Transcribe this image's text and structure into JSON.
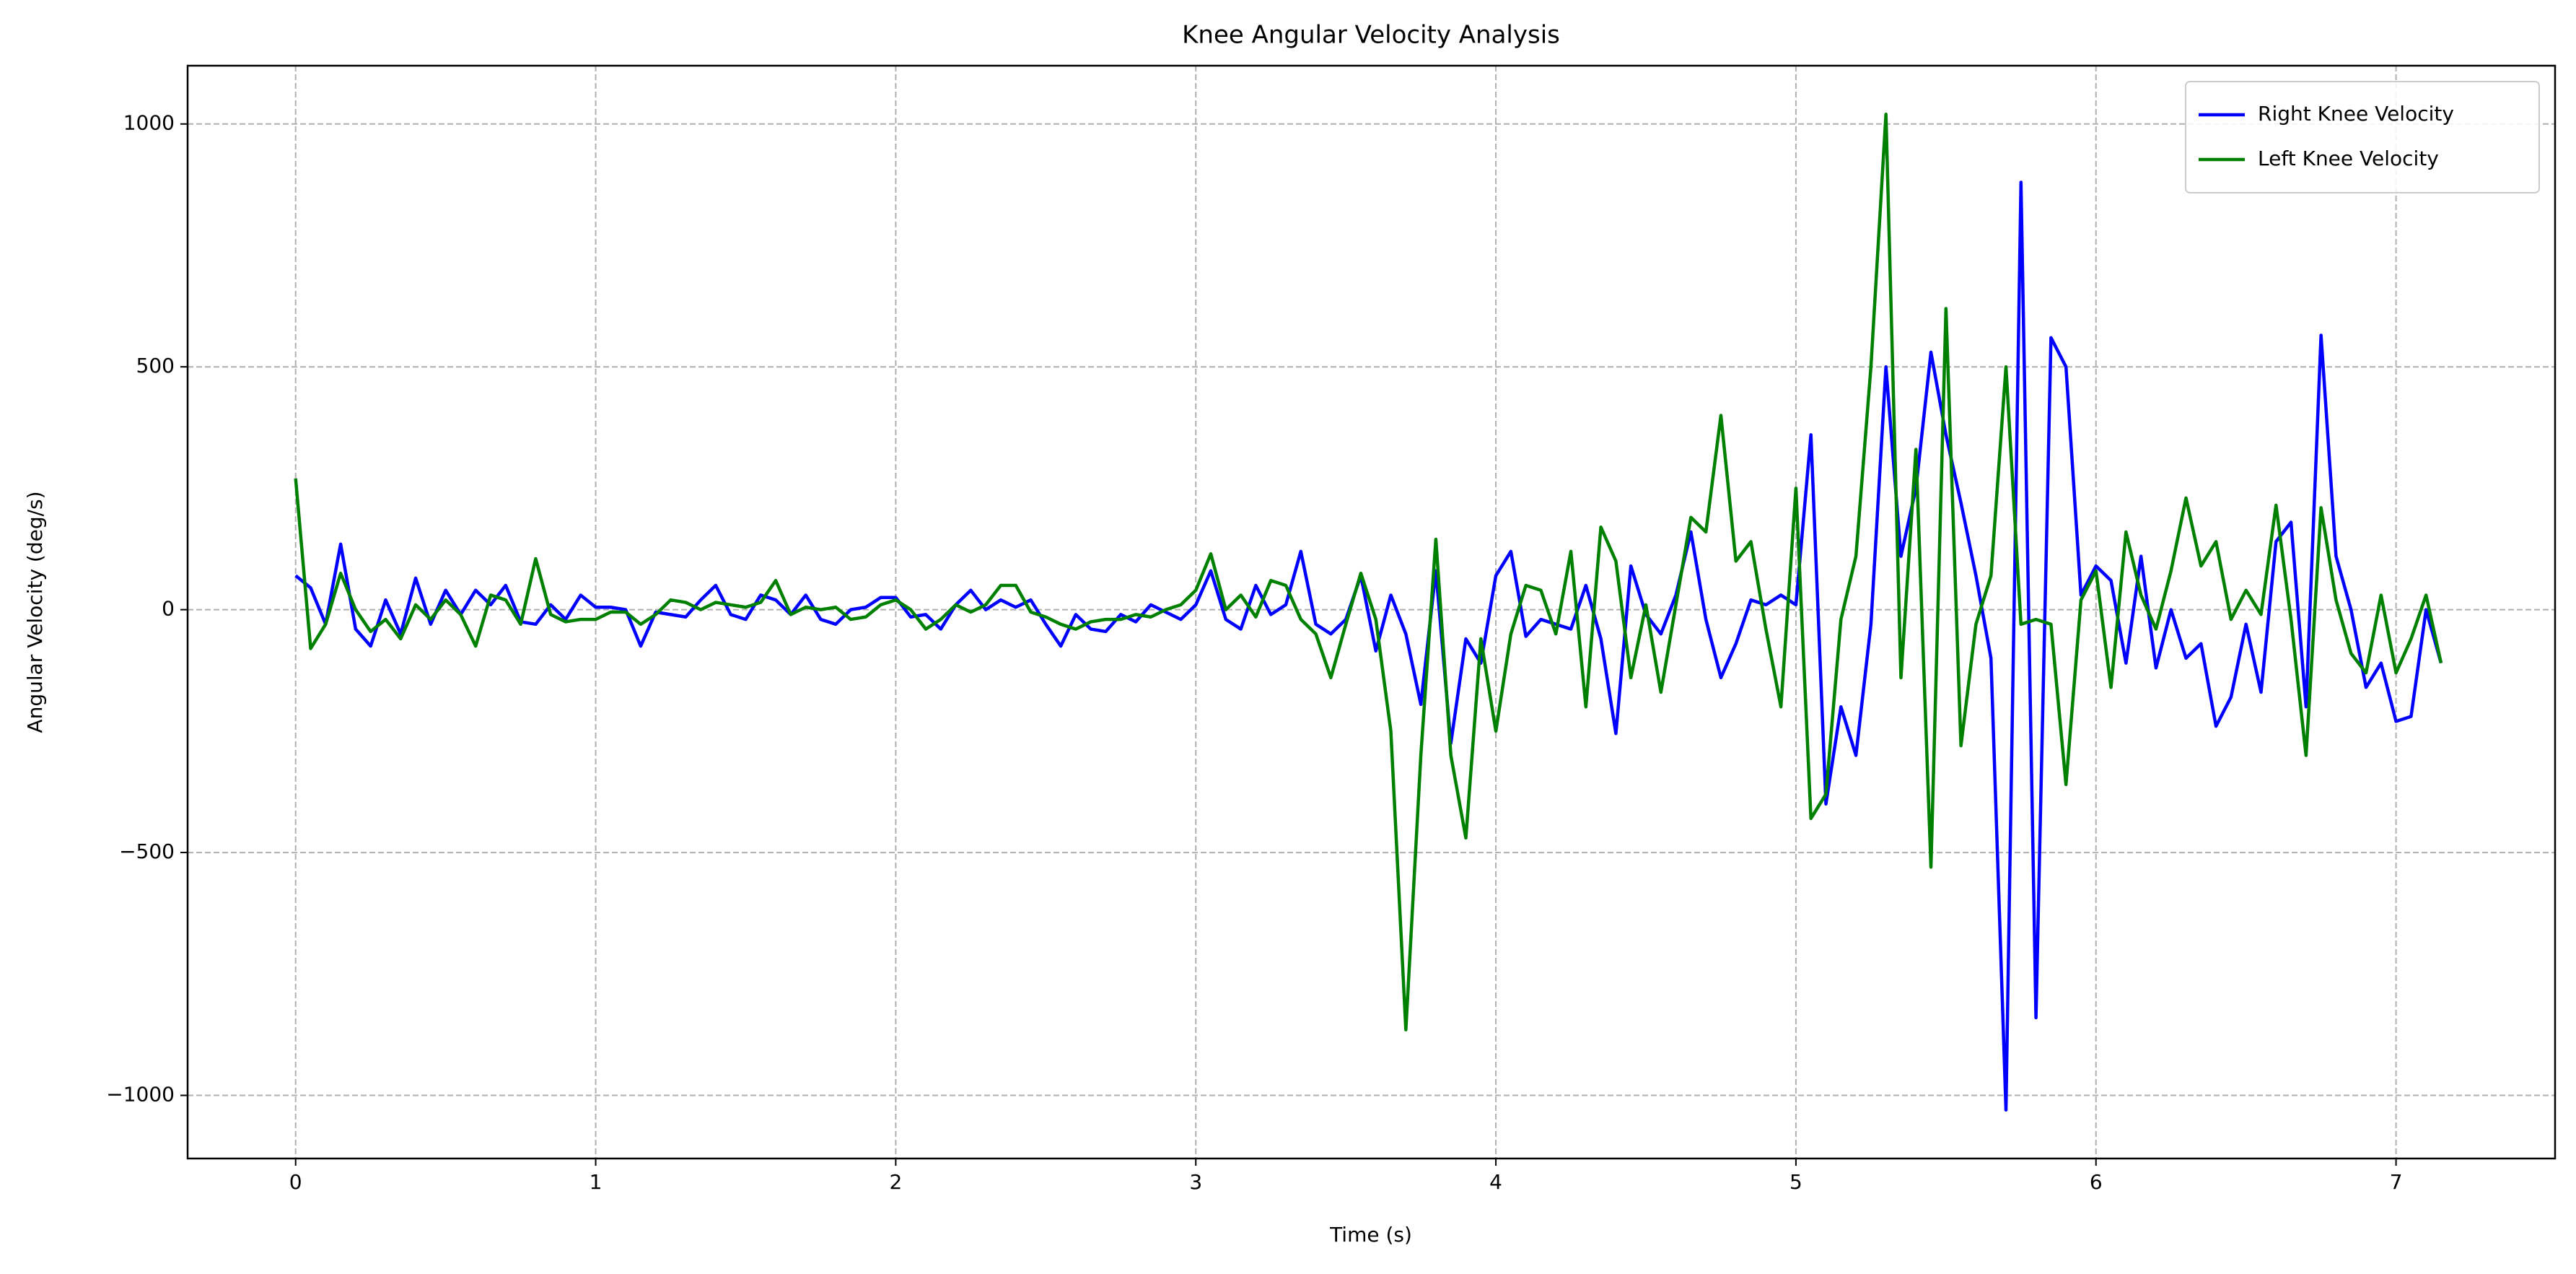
{
  "chart_data": {
    "type": "line",
    "title": "Knee Angular Velocity Analysis",
    "x_label": "Time (s)",
    "y_label": "Angular Velocity (deg/s)",
    "x": [
      0,
      0.05,
      0.1,
      0.15,
      0.2,
      0.25,
      0.3,
      0.35,
      0.4,
      0.45,
      0.5,
      0.55,
      0.6,
      0.65,
      0.7,
      0.75,
      0.8,
      0.85,
      0.9,
      0.95,
      1,
      1.05,
      1.1,
      1.15,
      1.2,
      1.25,
      1.3,
      1.35,
      1.4,
      1.45,
      1.5,
      1.55,
      1.6,
      1.65,
      1.7,
      1.75,
      1.8,
      1.85,
      1.9,
      1.95,
      2,
      2.05,
      2.1,
      2.15,
      2.2,
      2.25,
      2.3,
      2.35,
      2.4,
      2.45,
      2.5,
      2.55,
      2.6,
      2.65,
      2.7,
      2.75,
      2.8,
      2.85,
      2.9,
      2.95,
      3,
      3.05,
      3.1,
      3.15,
      3.2,
      3.25,
      3.3,
      3.35,
      3.4,
      3.45,
      3.5,
      3.55,
      3.6,
      3.65,
      3.7,
      3.75,
      3.8,
      3.85,
      3.9,
      3.95,
      4,
      4.05,
      4.1,
      4.15,
      4.2,
      4.25,
      4.3,
      4.35,
      4.4,
      4.45,
      4.5,
      4.55,
      4.6,
      4.65,
      4.7,
      4.75,
      4.8,
      4.85,
      4.9,
      4.95,
      5,
      5.05,
      5.1,
      5.15,
      5.2,
      5.25,
      5.3,
      5.35,
      5.4,
      5.45,
      5.5,
      5.55,
      5.6,
      5.65,
      5.7,
      5.75,
      5.8,
      5.85,
      5.9,
      5.95,
      6,
      6.05,
      6.1,
      6.15,
      6.2,
      6.25,
      6.3,
      6.35,
      6.4,
      6.45,
      6.5,
      6.55,
      6.6,
      6.65,
      6.7,
      6.75,
      6.8,
      6.85,
      6.9,
      6.95,
      7,
      7.05,
      7.1,
      7.15
    ],
    "series": [
      {
        "name": "Right Knee Velocity",
        "color": "#0000ff",
        "values": [
          70,
          45,
          -30,
          135,
          -40,
          -75,
          20,
          -50,
          65,
          -30,
          40,
          -10,
          40,
          10,
          50,
          -25,
          -30,
          10,
          -20,
          30,
          5,
          5,
          0,
          -75,
          -5,
          -10,
          -15,
          20,
          50,
          -10,
          -20,
          30,
          20,
          -10,
          30,
          -20,
          -30,
          0,
          5,
          25,
          25,
          -15,
          -10,
          -40,
          10,
          40,
          0,
          20,
          5,
          20,
          -30,
          -75,
          -10,
          -40,
          -45,
          -10,
          -25,
          10,
          -5,
          -20,
          10,
          80,
          -20,
          -40,
          50,
          -10,
          10,
          120,
          -30,
          -50,
          -20,
          70,
          -85,
          30,
          -50,
          -195,
          80,
          -275,
          -60,
          -110,
          70,
          120,
          -55,
          -20,
          -30,
          -40,
          50,
          -60,
          -255,
          90,
          -10,
          -50,
          30,
          160,
          -20,
          -140,
          -70,
          20,
          10,
          30,
          10,
          360,
          -400,
          -200,
          -300,
          -30,
          500,
          110,
          250,
          530,
          360,
          220,
          70,
          -100,
          -1030,
          880,
          -840,
          560,
          500,
          30,
          90,
          60,
          -110,
          110,
          -120,
          0,
          -100,
          -70,
          -240,
          -180,
          -30,
          -170,
          140,
          180,
          -200,
          565,
          110,
          0,
          -160,
          -110,
          -230,
          -220,
          0,
          -110
        ]
      },
      {
        "name": "Left Knee Velocity",
        "color": "#008000",
        "values": [
          270,
          -80,
          -30,
          75,
          0,
          -45,
          -20,
          -60,
          10,
          -20,
          20,
          -10,
          -75,
          30,
          20,
          -30,
          105,
          -10,
          -25,
          -20,
          -20,
          -5,
          -5,
          -30,
          -10,
          20,
          15,
          0,
          15,
          10,
          5,
          15,
          60,
          -10,
          5,
          0,
          5,
          -20,
          -15,
          10,
          20,
          0,
          -40,
          -20,
          10,
          -5,
          10,
          50,
          50,
          -5,
          -15,
          -30,
          -40,
          -25,
          -20,
          -20,
          -10,
          -15,
          0,
          10,
          40,
          115,
          0,
          30,
          -15,
          60,
          50,
          -20,
          -50,
          -140,
          -30,
          75,
          -20,
          -250,
          -865,
          -300,
          145,
          -300,
          -470,
          -60,
          -250,
          -50,
          50,
          40,
          -50,
          120,
          -200,
          170,
          100,
          -140,
          10,
          -170,
          10,
          190,
          160,
          400,
          100,
          140,
          -40,
          -200,
          250,
          -430,
          -380,
          -20,
          110,
          500,
          1020,
          -140,
          330,
          -530,
          620,
          -280,
          -30,
          70,
          500,
          -30,
          -20,
          -30,
          -360,
          20,
          80,
          -160,
          160,
          30,
          -40,
          80,
          230,
          90,
          140,
          -20,
          40,
          -10,
          215,
          -20,
          -300,
          210,
          20,
          -90,
          -130,
          30,
          -130,
          -60,
          30,
          -110
        ]
      }
    ],
    "xlim": [
      -0.36,
      7.53
    ],
    "ylim": [
      -1130,
      1120
    ],
    "xticks": [
      0,
      1,
      2,
      3,
      4,
      5,
      6,
      7
    ],
    "yticks": [
      {
        "value": -1000,
        "label": "−1000"
      },
      {
        "value": -500,
        "label": "−500"
      },
      0,
      500,
      1000
    ],
    "grid": true,
    "legend": "upper right"
  }
}
